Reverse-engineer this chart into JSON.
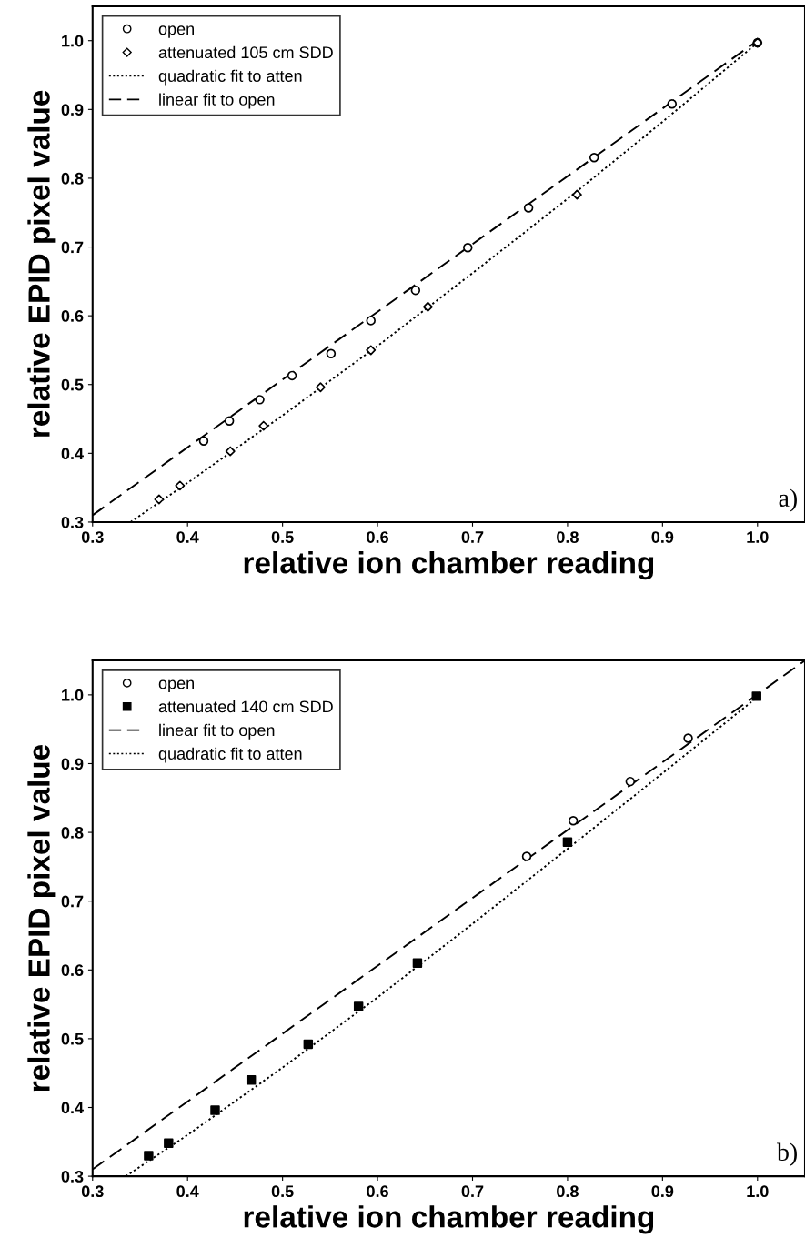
{
  "chart_data": [
    {
      "type": "scatter",
      "xlabel": "relative ion chamber reading",
      "ylabel": "relative EPID pixel value",
      "xlim": [
        0.3,
        1.05
      ],
      "ylim": [
        0.3,
        1.05
      ],
      "xticks": [
        {
          "value": 0.3,
          "label": "0.3"
        },
        {
          "value": 0.4,
          "label": "0.4"
        },
        {
          "value": 0.5,
          "label": "0.5"
        },
        {
          "value": 0.6,
          "label": "0.6"
        },
        {
          "value": 0.7,
          "label": "0.7"
        },
        {
          "value": 0.8,
          "label": "0.8"
        },
        {
          "value": 0.9,
          "label": "0.9"
        },
        {
          "value": 1.0,
          "label": "1.0"
        }
      ],
      "yticks": [
        {
          "value": 0.3,
          "label": "0.3"
        },
        {
          "value": 0.4,
          "label": "0.4"
        },
        {
          "value": 0.5,
          "label": "0.5"
        },
        {
          "value": 0.6,
          "label": "0.6"
        },
        {
          "value": 0.7,
          "label": "0.7"
        },
        {
          "value": 0.8,
          "label": "0.8"
        },
        {
          "value": 0.9,
          "label": "0.9"
        },
        {
          "value": 1.0,
          "label": "1.0"
        }
      ],
      "grid": false,
      "legend": "top left",
      "annotations": [
        "a)"
      ],
      "series": [
        {
          "name": "open",
          "marker": "circle",
          "color": "#000000",
          "x": [
            0.417,
            0.444,
            0.476,
            0.51,
            0.551,
            0.593,
            0.64,
            0.695,
            0.759,
            0.828,
            0.91,
            1.0
          ],
          "values": [
            0.418,
            0.447,
            0.478,
            0.513,
            0.545,
            0.593,
            0.637,
            0.699,
            0.757,
            0.83,
            0.908,
            0.997
          ]
        },
        {
          "name": "attenuated 105 cm SDD",
          "marker": "diamond",
          "color": "#000000",
          "x": [
            0.37,
            0.392,
            0.445,
            0.48,
            0.54,
            0.593,
            0.653,
            0.81,
            1.0
          ],
          "values": [
            0.333,
            0.353,
            0.403,
            0.44,
            0.496,
            0.55,
            0.613,
            0.776,
            0.997
          ]
        },
        {
          "name": "quadratic fit to atten",
          "type": "line",
          "line_style": "dotted",
          "color": "#000000",
          "x": [
            0.34,
            0.4,
            0.5,
            0.6,
            0.7,
            0.8,
            0.9,
            1.0
          ],
          "values": [
            0.3,
            0.357,
            0.455,
            0.556,
            0.662,
            0.77,
            0.882,
            0.997
          ]
        },
        {
          "name": "linear fit to open",
          "type": "line",
          "line_style": "dashed",
          "color": "#000000",
          "x": [
            0.3,
            1.0
          ],
          "values": [
            0.31,
            1.0
          ]
        }
      ]
    },
    {
      "type": "scatter",
      "xlabel": "relative ion chamber reading",
      "ylabel": "relative EPID pixel value",
      "xlim": [
        0.3,
        1.05
      ],
      "ylim": [
        0.3,
        1.05
      ],
      "xticks": [
        {
          "value": 0.3,
          "label": "0.3"
        },
        {
          "value": 0.4,
          "label": "0.4"
        },
        {
          "value": 0.5,
          "label": "0.5"
        },
        {
          "value": 0.6,
          "label": "0.6"
        },
        {
          "value": 0.7,
          "label": "0.7"
        },
        {
          "value": 0.8,
          "label": "0.8"
        },
        {
          "value": 0.9,
          "label": "0.9"
        },
        {
          "value": 1.0,
          "label": "1.0"
        }
      ],
      "yticks": [
        {
          "value": 0.3,
          "label": "0.3"
        },
        {
          "value": 0.4,
          "label": "0.4"
        },
        {
          "value": 0.5,
          "label": "0.5"
        },
        {
          "value": 0.6,
          "label": "0.6"
        },
        {
          "value": 0.7,
          "label": "0.7"
        },
        {
          "value": 0.8,
          "label": "0.8"
        },
        {
          "value": 0.9,
          "label": "0.9"
        },
        {
          "value": 1.0,
          "label": "1.0"
        }
      ],
      "grid": false,
      "legend": "top left",
      "annotations": [
        "b)"
      ],
      "series": [
        {
          "name": "open",
          "marker": "circle",
          "color": "#000000",
          "x": [
            0.757,
            0.806,
            0.866,
            0.927
          ],
          "values": [
            0.765,
            0.817,
            0.874,
            0.937
          ]
        },
        {
          "name": "attenuated 140 cm SDD",
          "marker": "square",
          "color": "#000000",
          "x": [
            0.359,
            0.38,
            0.429,
            0.467,
            0.527,
            0.58,
            0.642,
            0.8,
            0.999
          ],
          "values": [
            0.33,
            0.348,
            0.396,
            0.44,
            0.492,
            0.547,
            0.61,
            0.786,
            0.998
          ]
        },
        {
          "name": "linear fit to open",
          "type": "line",
          "line_style": "dashed",
          "color": "#000000",
          "x": [
            0.3,
            1.05
          ],
          "values": [
            0.31,
            1.05
          ]
        },
        {
          "name": "quadratic fit to atten",
          "type": "line",
          "line_style": "dotted",
          "color": "#000000",
          "x": [
            0.335,
            0.4,
            0.5,
            0.6,
            0.7,
            0.8,
            0.9,
            1.0
          ],
          "values": [
            0.3,
            0.36,
            0.458,
            0.56,
            0.667,
            0.776,
            0.886,
            0.997
          ]
        }
      ]
    }
  ]
}
